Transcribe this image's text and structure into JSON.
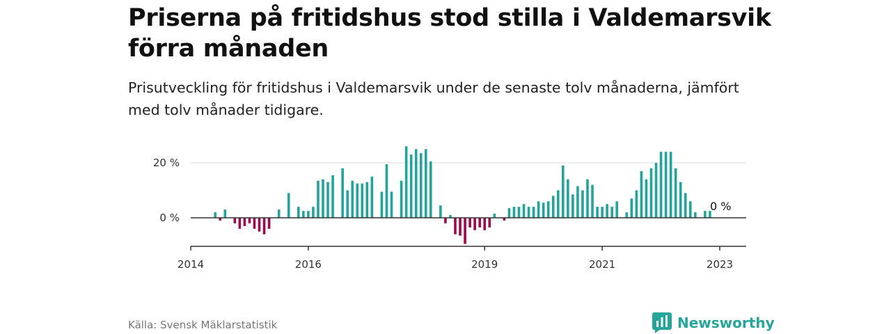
{
  "title": "Priserna på fritidshus stod stilla i Valdemarsvik förra månaden",
  "subtitle": "Prisutveckling för fritidshus i Valdemarsvik under de senaste tolv månaderna, jämfört med tolv månader tidigare.",
  "source": "Källa: Svensk Mäklarstatistik",
  "brand": "Newsworthy",
  "colors": {
    "positive": "#21a59a",
    "negative": "#9b0a4a",
    "grid": "#dddddd",
    "axis": "#333333",
    "brand": "#26a69a"
  },
  "chart_data": {
    "type": "bar",
    "title": "",
    "xlabel": "",
    "ylabel": "",
    "y_unit": "%",
    "ylim": [
      -10,
      27
    ],
    "y_ticks": [
      {
        "value": 0,
        "label": "0 %"
      },
      {
        "value": 20,
        "label": "20 %"
      }
    ],
    "x_ticks": [
      {
        "value": "2014-01",
        "label": "2014"
      },
      {
        "value": "2016-01",
        "label": "2016"
      },
      {
        "value": "2019-01",
        "label": "2019"
      },
      {
        "value": "2021-01",
        "label": "2021"
      },
      {
        "value": "2023-01",
        "label": "2023"
      }
    ],
    "grid": "horizontal",
    "annotations": [
      {
        "label": "0 %",
        "x": "2022-12"
      }
    ],
    "series": [
      {
        "points": [
          [
            "2014-06",
            2
          ],
          [
            "2014-07",
            -1
          ],
          [
            "2014-08",
            3
          ],
          [
            "2014-10",
            -2
          ],
          [
            "2014-11",
            -4
          ],
          [
            "2014-12",
            -3
          ],
          [
            "2015-01",
            -2
          ],
          [
            "2015-02",
            -4
          ],
          [
            "2015-03",
            -5
          ],
          [
            "2015-04",
            -6
          ],
          [
            "2015-05",
            -4
          ],
          [
            "2015-07",
            3
          ],
          [
            "2015-09",
            9
          ],
          [
            "2015-11",
            4
          ],
          [
            "2015-12",
            2.5
          ],
          [
            "2016-01",
            2.5
          ],
          [
            "2016-02",
            4
          ],
          [
            "2016-03",
            13.5
          ],
          [
            "2016-04",
            14
          ],
          [
            "2016-05",
            13
          ],
          [
            "2016-06",
            15.5
          ],
          [
            "2016-08",
            18
          ],
          [
            "2016-09",
            10
          ],
          [
            "2016-10",
            13.5
          ],
          [
            "2016-11",
            12.5
          ],
          [
            "2016-12",
            12.5
          ],
          [
            "2017-01",
            13
          ],
          [
            "2017-02",
            15
          ],
          [
            "2017-04",
            9.5
          ],
          [
            "2017-05",
            19.5
          ],
          [
            "2017-06",
            9.5
          ],
          [
            "2017-08",
            13.5
          ],
          [
            "2017-09",
            26
          ],
          [
            "2017-10",
            23
          ],
          [
            "2017-11",
            25
          ],
          [
            "2017-12",
            23.5
          ],
          [
            "2018-01",
            25
          ],
          [
            "2018-02",
            20.5
          ],
          [
            "2018-04",
            4.5
          ],
          [
            "2018-05",
            -2
          ],
          [
            "2018-06",
            1
          ],
          [
            "2018-07",
            -6
          ],
          [
            "2018-08",
            -6.5
          ],
          [
            "2018-09",
            -9.5
          ],
          [
            "2018-10",
            -3.5
          ],
          [
            "2018-11",
            -4.5
          ],
          [
            "2018-12",
            -3.5
          ],
          [
            "2019-01",
            -4.5
          ],
          [
            "2019-02",
            -3.5
          ],
          [
            "2019-03",
            1.5
          ],
          [
            "2019-05",
            -1
          ],
          [
            "2019-06",
            3.5
          ],
          [
            "2019-07",
            4
          ],
          [
            "2019-08",
            4
          ],
          [
            "2019-09",
            5
          ],
          [
            "2019-10",
            4
          ],
          [
            "2019-11",
            4
          ],
          [
            "2019-12",
            6
          ],
          [
            "2020-01",
            5.5
          ],
          [
            "2020-02",
            6
          ],
          [
            "2020-03",
            8
          ],
          [
            "2020-04",
            10
          ],
          [
            "2020-05",
            19
          ],
          [
            "2020-06",
            14
          ],
          [
            "2020-07",
            8.5
          ],
          [
            "2020-08",
            11.5
          ],
          [
            "2020-09",
            10
          ],
          [
            "2020-10",
            14
          ],
          [
            "2020-11",
            12
          ],
          [
            "2020-12",
            4
          ],
          [
            "2021-01",
            4
          ],
          [
            "2021-02",
            5
          ],
          [
            "2021-03",
            4
          ],
          [
            "2021-04",
            6
          ],
          [
            "2021-06",
            2
          ],
          [
            "2021-07",
            7
          ],
          [
            "2021-08",
            10
          ],
          [
            "2021-09",
            17
          ],
          [
            "2021-10",
            14
          ],
          [
            "2021-11",
            18
          ],
          [
            "2021-12",
            20
          ],
          [
            "2022-01",
            24
          ],
          [
            "2022-02",
            24
          ],
          [
            "2022-03",
            24
          ],
          [
            "2022-04",
            18
          ],
          [
            "2022-05",
            13
          ],
          [
            "2022-06",
            9
          ],
          [
            "2022-07",
            6
          ],
          [
            "2022-08",
            2
          ],
          [
            "2022-10",
            2.5
          ],
          [
            "2022-11",
            2.5
          ],
          [
            "2022-12",
            0
          ]
        ]
      }
    ]
  }
}
